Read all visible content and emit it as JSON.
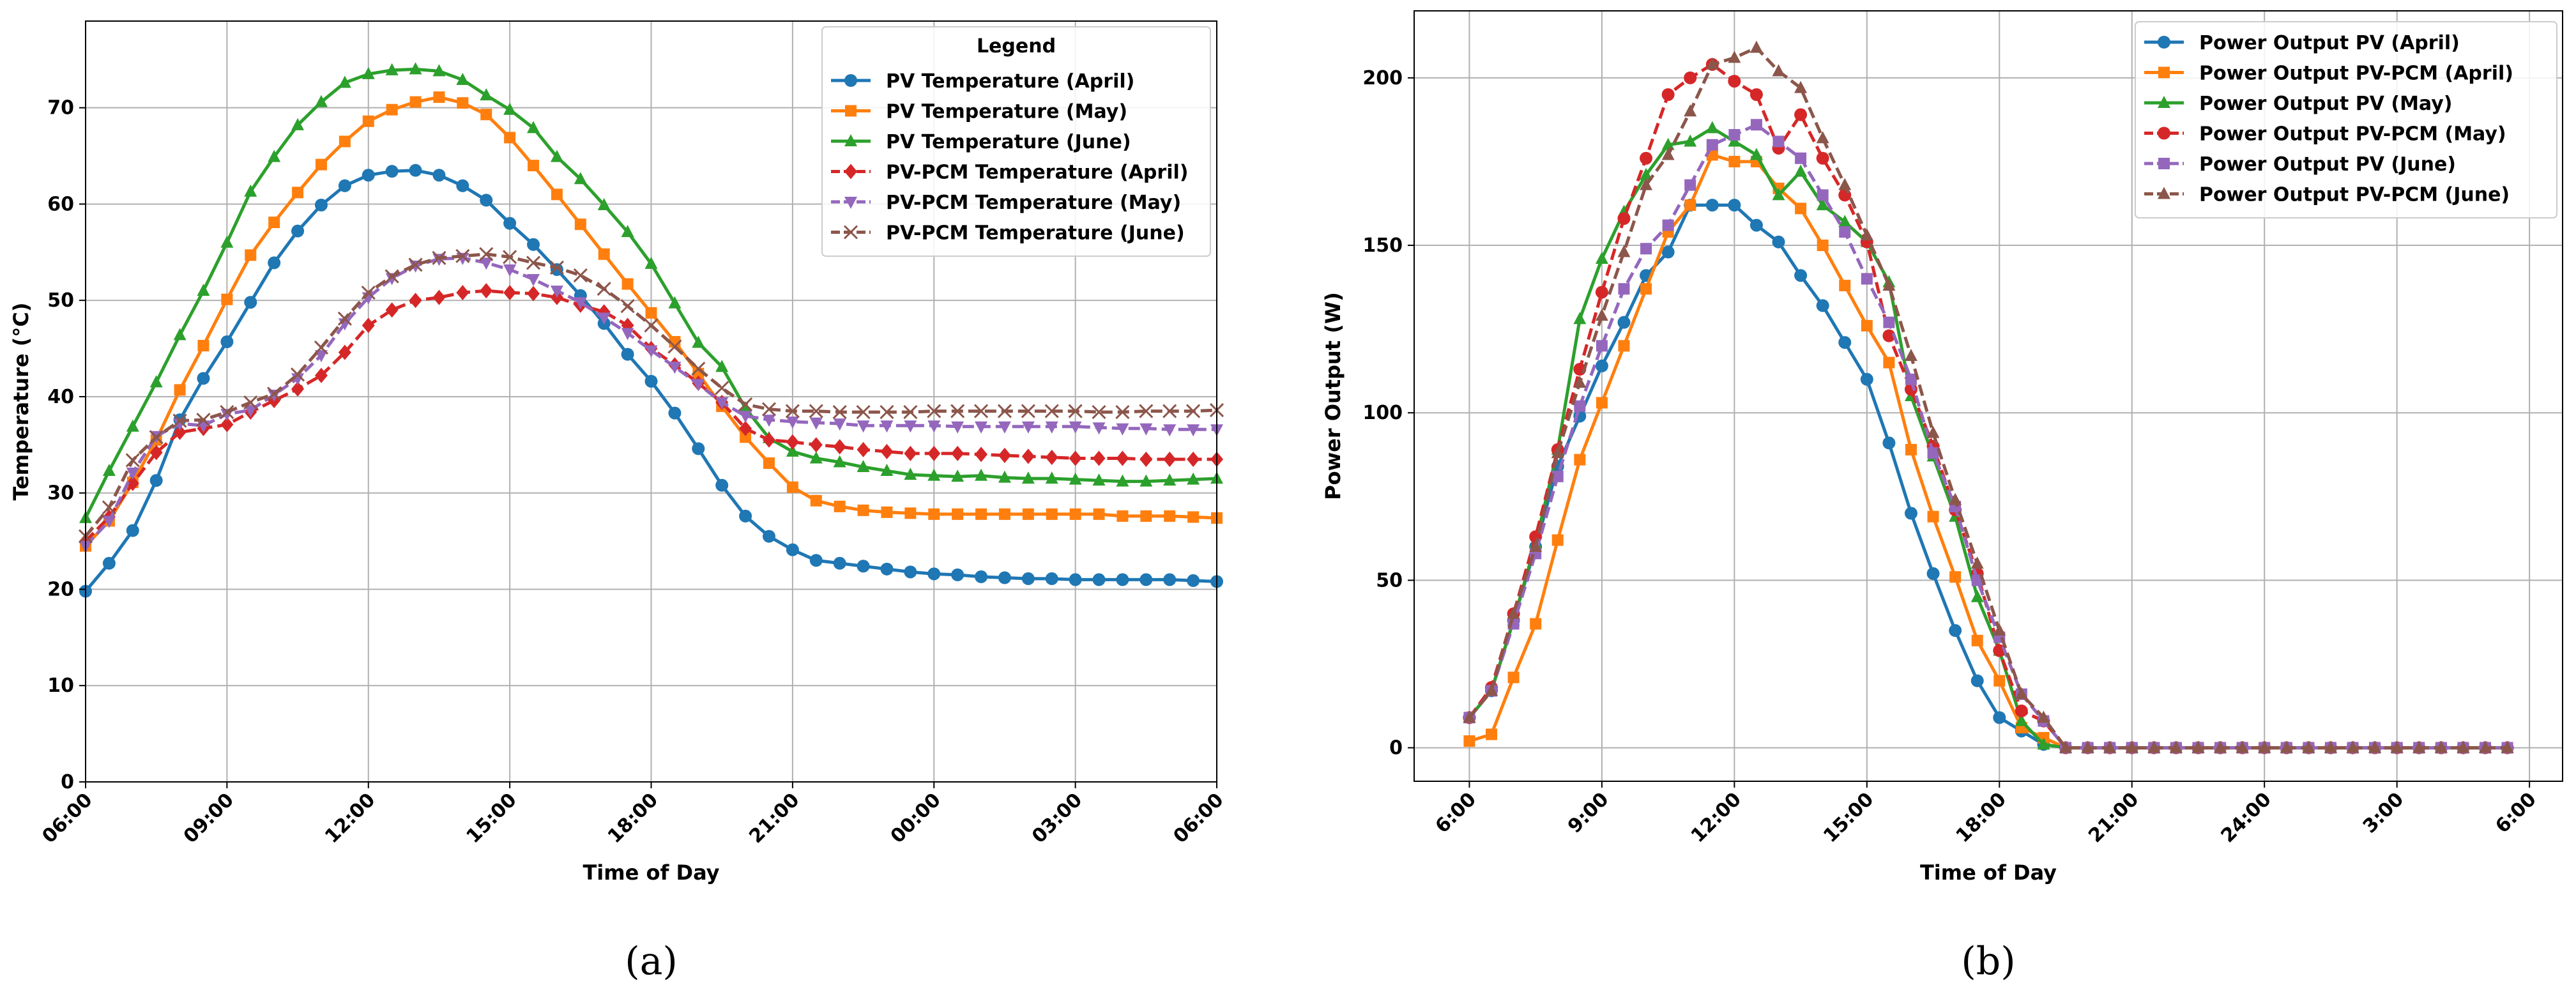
{
  "chart_data": [
    {
      "type": "line",
      "panel_label": "(a)",
      "xlabel": "Time of Day",
      "ylabel": "Temperature (°C)",
      "xlim": [
        6,
        30
      ],
      "ylim": [
        0,
        79
      ],
      "x_ticks": [
        6,
        9,
        12,
        15,
        18,
        21,
        24,
        27,
        30
      ],
      "x_tick_labels": [
        "06:00",
        "09:00",
        "12:00",
        "15:00",
        "18:00",
        "21:00",
        "00:00",
        "03:00",
        "06:00"
      ],
      "y_ticks": [
        0,
        10,
        20,
        30,
        40,
        50,
        60,
        70
      ],
      "y_tick_labels": [
        "0",
        "10",
        "20",
        "30",
        "40",
        "50",
        "60",
        "70"
      ],
      "grid": true,
      "legend": {
        "title": "Legend",
        "placement": "top-right"
      },
      "x_step_hours": 0.5,
      "series": [
        {
          "name": "PV Temperature (April)",
          "color": "#1f77b4",
          "marker": "circle",
          "dashed": false,
          "values": [
            19.8,
            22.7,
            26.1,
            31.3,
            37.6,
            41.9,
            45.7,
            49.8,
            53.9,
            57.2,
            59.9,
            61.9,
            63,
            63.4,
            63.5,
            63,
            61.9,
            60.4,
            58,
            55.8,
            53.2,
            50.5,
            47.6,
            44.4,
            41.6,
            38.3,
            34.6,
            30.8,
            27.6,
            25.5,
            24.1,
            23,
            22.7,
            22.4,
            22.1,
            21.8,
            21.6,
            21.5,
            21.3,
            21.2,
            21.1,
            21.1,
            21,
            21,
            21,
            21,
            21,
            20.9,
            20.8
          ]
        },
        {
          "name": "PV Temperature (May)",
          "color": "#ff7f0e",
          "marker": "square",
          "dashed": false,
          "values": [
            24.5,
            27.1,
            31.1,
            35.5,
            40.7,
            45.3,
            50.1,
            54.7,
            58.1,
            61.2,
            64.1,
            66.5,
            68.6,
            69.8,
            70.6,
            71.1,
            70.5,
            69.3,
            66.9,
            64,
            61,
            57.9,
            54.8,
            51.7,
            48.7,
            45.7,
            42.4,
            39,
            35.8,
            33.1,
            30.6,
            29.2,
            28.6,
            28.2,
            28,
            27.9,
            27.8,
            27.8,
            27.8,
            27.8,
            27.8,
            27.8,
            27.8,
            27.8,
            27.6,
            27.6,
            27.6,
            27.5,
            27.4
          ]
        },
        {
          "name": "PV Temperature (June)",
          "color": "#2ca02c",
          "marker": "triangle",
          "dashed": false,
          "values": [
            27.4,
            32.3,
            36.9,
            41.5,
            46.4,
            51,
            56,
            61.3,
            64.9,
            68.2,
            70.6,
            72.6,
            73.5,
            73.9,
            74,
            73.8,
            72.9,
            71.3,
            69.8,
            67.9,
            64.9,
            62.6,
            59.9,
            57.1,
            53.8,
            49.7,
            45.6,
            43.1,
            38.8,
            35.7,
            34.3,
            33.6,
            33.2,
            32.7,
            32.3,
            31.9,
            31.8,
            31.7,
            31.8,
            31.6,
            31.5,
            31.5,
            31.4,
            31.3,
            31.2,
            31.2,
            31.3,
            31.4,
            31.5
          ]
        },
        {
          "name": "PV-PCM Temperature (April)",
          "color": "#d62728",
          "marker": "diamond",
          "dashed": true,
          "values": [
            25,
            27.5,
            31,
            34.2,
            36.3,
            36.7,
            37.1,
            38.4,
            39.6,
            40.8,
            42.2,
            44.6,
            47.4,
            49,
            50,
            50.3,
            50.8,
            51,
            50.8,
            50.7,
            50.3,
            49.5,
            48.8,
            47.4,
            45,
            43.3,
            41.4,
            39.4,
            36.7,
            35.5,
            35.3,
            35,
            34.8,
            34.5,
            34.3,
            34.1,
            34.1,
            34.1,
            34,
            33.9,
            33.8,
            33.7,
            33.6,
            33.6,
            33.6,
            33.5,
            33.5,
            33.5,
            33.5
          ]
        },
        {
          "name": "PV-PCM Temperature (May)",
          "color": "#9467bd",
          "marker": "triangle-down",
          "dashed": true,
          "values": [
            24.5,
            27.1,
            32.1,
            35.9,
            37.2,
            37,
            38.2,
            38.6,
            40.2,
            41.9,
            44.3,
            47.6,
            50.3,
            52.3,
            53.6,
            54.3,
            54.4,
            53.9,
            53.2,
            52.2,
            51,
            49.8,
            48.2,
            46.6,
            44.8,
            43.1,
            41.3,
            39.4,
            38,
            37.6,
            37.4,
            37.3,
            37.2,
            37,
            37,
            37,
            37,
            36.9,
            36.9,
            36.9,
            36.9,
            36.9,
            36.9,
            36.8,
            36.7,
            36.7,
            36.6,
            36.6,
            36.6
          ]
        },
        {
          "name": "PV-PCM Temperature (June)",
          "color": "#8c564b",
          "marker": "x",
          "dashed": true,
          "values": [
            25.5,
            28.5,
            33.4,
            35.8,
            37.5,
            37.6,
            38.4,
            39.4,
            40.3,
            42.3,
            45.1,
            48.1,
            50.8,
            52.5,
            53.7,
            54.4,
            54.6,
            54.8,
            54.5,
            53.9,
            53.4,
            52.6,
            51.2,
            49.4,
            47.4,
            45.2,
            42.9,
            40.9,
            39.2,
            38.7,
            38.5,
            38.5,
            38.4,
            38.4,
            38.4,
            38.4,
            38.5,
            38.5,
            38.5,
            38.5,
            38.5,
            38.5,
            38.5,
            38.4,
            38.4,
            38.5,
            38.5,
            38.5,
            38.6
          ]
        }
      ]
    },
    {
      "type": "line",
      "panel_label": "(b)",
      "xlabel": "Time of Day",
      "ylabel": "Power Output (W)",
      "xlim": [
        4.75,
        30.75
      ],
      "ylim": [
        -10,
        220
      ],
      "x_ticks": [
        6,
        9,
        12,
        15,
        18,
        21,
        24,
        27,
        30
      ],
      "x_tick_labels": [
        "6:00",
        "9:00",
        "12:00",
        "15:00",
        "18:00",
        "21:00",
        "24:00",
        "3:00",
        "6:00"
      ],
      "y_ticks": [
        0,
        50,
        100,
        150,
        200
      ],
      "y_tick_labels": [
        "0",
        "50",
        "100",
        "150",
        "200"
      ],
      "grid": true,
      "legend": {
        "title": "",
        "placement": "top-right"
      },
      "x_step_hours": 0.5,
      "series": [
        {
          "name": "Power Output PV (April)",
          "color": "#1f77b4",
          "marker": "circle",
          "dashed": false,
          "values": [
            9,
            17,
            38,
            60,
            84,
            99,
            114,
            127,
            141,
            148,
            162,
            162,
            162,
            156,
            151,
            141,
            132,
            121,
            110,
            91,
            70,
            52,
            35,
            20,
            9,
            5,
            1,
            0,
            0,
            0,
            0,
            0,
            0,
            0,
            0,
            0,
            0,
            0,
            0,
            0,
            0,
            0,
            0,
            0,
            0,
            0,
            0,
            0
          ]
        },
        {
          "name": "Power Output PV-PCM (April)",
          "color": "#ff7f0e",
          "marker": "square",
          "dashed": false,
          "values": [
            2,
            4,
            21,
            37,
            62,
            86,
            103,
            120,
            137,
            154,
            162,
            177,
            175,
            175,
            167,
            161,
            150,
            138,
            126,
            115,
            89,
            69,
            51,
            32,
            20,
            6,
            3,
            0,
            0,
            0,
            0,
            0,
            0,
            0,
            0,
            0,
            0,
            0,
            0,
            0,
            0,
            0,
            0,
            0,
            0,
            0,
            0,
            0
          ]
        },
        {
          "name": "Power Output PV (May)",
          "color": "#2ca02c",
          "marker": "triangle",
          "dashed": false,
          "values": [
            9,
            17,
            38,
            61,
            89,
            128,
            146,
            160,
            171,
            180,
            181,
            185,
            181,
            177,
            165,
            172,
            162,
            157,
            151,
            139,
            105,
            87,
            69,
            45,
            29,
            8,
            1,
            0,
            0,
            0,
            0,
            0,
            0,
            0,
            0,
            0,
            0,
            0,
            0,
            0,
            0,
            0,
            0,
            0,
            0,
            0,
            0,
            0
          ]
        },
        {
          "name": "Power Output PV-PCM (May)",
          "color": "#d62728",
          "marker": "circle",
          "dashed": true,
          "values": [
            9,
            18,
            40,
            63,
            89,
            113,
            136,
            158,
            176,
            195,
            200,
            204,
            199,
            195,
            179,
            189,
            176,
            165,
            151,
            123,
            107,
            90,
            71,
            52,
            29,
            11,
            8,
            0,
            0,
            0,
            0,
            0,
            0,
            0,
            0,
            0,
            0,
            0,
            0,
            0,
            0,
            0,
            0,
            0,
            0,
            0,
            0,
            0
          ]
        },
        {
          "name": "Power Output PV (June)",
          "color": "#9467bd",
          "marker": "square",
          "dashed": true,
          "values": [
            9,
            17,
            37,
            58,
            81,
            102,
            120,
            137,
            149,
            156,
            168,
            180,
            183,
            186,
            181,
            176,
            165,
            154,
            140,
            127,
            110,
            88,
            72,
            50,
            33,
            16,
            8,
            0,
            0,
            0,
            0,
            0,
            0,
            0,
            0,
            0,
            0,
            0,
            0,
            0,
            0,
            0,
            0,
            0,
            0,
            0,
            0,
            0
          ]
        },
        {
          "name": "Power Output PV-PCM (June)",
          "color": "#8c564b",
          "marker": "triangle",
          "dashed": true,
          "values": [
            9,
            17,
            40,
            60,
            88,
            109,
            129,
            148,
            168,
            177,
            190,
            204,
            206,
            209,
            202,
            197,
            182,
            168,
            153,
            138,
            117,
            94,
            74,
            55,
            35,
            16,
            9,
            0,
            0,
            0,
            0,
            0,
            0,
            0,
            0,
            0,
            0,
            0,
            0,
            0,
            0,
            0,
            0,
            0,
            0,
            0,
            0,
            0
          ]
        }
      ]
    }
  ]
}
